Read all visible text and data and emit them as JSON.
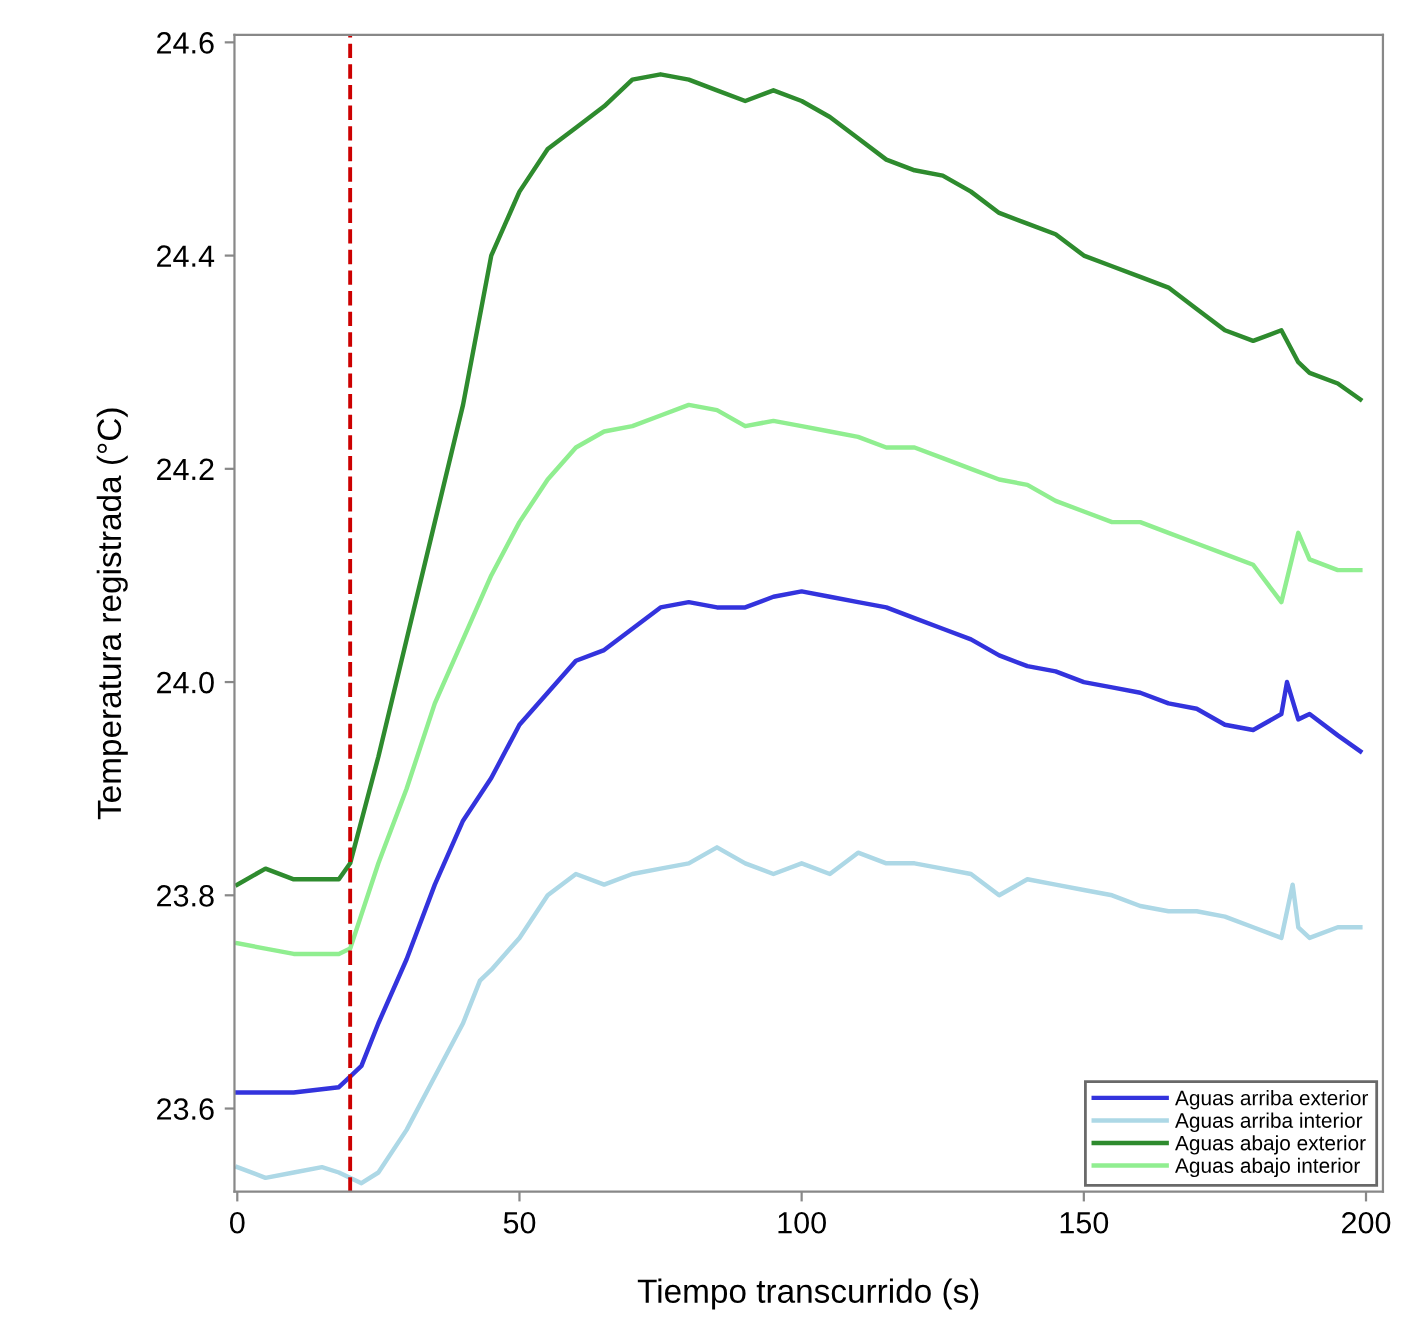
{
  "chart_data": {
    "type": "line",
    "xlabel": "Tiempo transcurrido (s)",
    "ylabel": "Temperatura registrada (°C)",
    "xlim": [
      -0.5,
      203
    ],
    "ylim": [
      23.522,
      24.607
    ],
    "xticks": [
      0,
      50,
      100,
      150,
      200
    ],
    "yticks": [
      23.6,
      23.8,
      {
        "value": 24.0,
        "label": "24.0"
      },
      24.2,
      24.4,
      24.6
    ],
    "grid": false,
    "legend": "bottom right",
    "line_style": "solid",
    "ref_lines": [
      {
        "axis": "x",
        "value": 20,
        "color": "#cc0000",
        "line_style": "dashed"
      }
    ],
    "series": [
      {
        "name": "Aguas arriba exterior",
        "color": "#3333dd",
        "x": [
          0,
          10,
          18,
          20,
          22,
          25,
          30,
          35,
          40,
          45,
          50,
          55,
          60,
          65,
          70,
          75,
          80,
          85,
          90,
          95,
          100,
          105,
          110,
          115,
          120,
          125,
          130,
          135,
          140,
          145,
          150,
          155,
          160,
          165,
          170,
          175,
          180,
          185,
          186,
          188,
          190,
          195,
          199
        ],
        "values": [
          23.615,
          23.615,
          23.62,
          23.63,
          23.64,
          23.68,
          23.74,
          23.81,
          23.87,
          23.91,
          23.96,
          23.99,
          24.02,
          24.03,
          24.05,
          24.07,
          24.075,
          24.07,
          24.07,
          24.08,
          24.085,
          24.08,
          24.075,
          24.07,
          24.06,
          24.05,
          24.04,
          24.025,
          24.015,
          24.01,
          24.0,
          23.995,
          23.99,
          23.98,
          23.975,
          23.96,
          23.955,
          23.97,
          24.0,
          23.965,
          23.97,
          23.95,
          23.935
        ]
      },
      {
        "name": "Aguas arriba interior",
        "color": "#add8e6",
        "x": [
          0,
          5,
          10,
          15,
          18,
          22,
          25,
          30,
          35,
          40,
          43,
          45,
          50,
          55,
          60,
          65,
          70,
          75,
          80,
          85,
          90,
          95,
          100,
          105,
          110,
          115,
          120,
          125,
          130,
          135,
          140,
          145,
          150,
          155,
          160,
          165,
          170,
          175,
          180,
          185,
          187,
          188,
          190,
          195,
          199
        ],
        "values": [
          23.545,
          23.535,
          23.54,
          23.545,
          23.54,
          23.53,
          23.54,
          23.58,
          23.63,
          23.68,
          23.72,
          23.73,
          23.76,
          23.8,
          23.82,
          23.81,
          23.82,
          23.825,
          23.83,
          23.845,
          23.83,
          23.82,
          23.83,
          23.82,
          23.84,
          23.83,
          23.83,
          23.825,
          23.82,
          23.8,
          23.815,
          23.81,
          23.805,
          23.8,
          23.79,
          23.785,
          23.785,
          23.78,
          23.77,
          23.76,
          23.81,
          23.77,
          23.76,
          23.77,
          23.77
        ]
      },
      {
        "name": "Aguas abajo exterior",
        "color": "#2e8b2e",
        "x": [
          0,
          5,
          10,
          18,
          20,
          25,
          30,
          35,
          40,
          45,
          50,
          55,
          60,
          65,
          70,
          75,
          80,
          85,
          90,
          95,
          100,
          105,
          110,
          115,
          120,
          125,
          130,
          135,
          140,
          145,
          150,
          155,
          160,
          165,
          170,
          175,
          180,
          185,
          188,
          190,
          195,
          199
        ],
        "values": [
          23.81,
          23.825,
          23.815,
          23.815,
          23.83,
          23.93,
          24.04,
          24.15,
          24.26,
          24.4,
          24.46,
          24.5,
          24.52,
          24.54,
          24.565,
          24.57,
          24.565,
          24.555,
          24.545,
          24.555,
          24.545,
          24.53,
          24.51,
          24.49,
          24.48,
          24.475,
          24.46,
          24.44,
          24.43,
          24.42,
          24.4,
          24.39,
          24.38,
          24.37,
          24.35,
          24.33,
          24.32,
          24.33,
          24.3,
          24.29,
          24.28,
          24.265
        ]
      },
      {
        "name": "Aguas abajo interior",
        "color": "#90ee90",
        "x": [
          0,
          5,
          10,
          18,
          20,
          25,
          30,
          35,
          40,
          45,
          50,
          55,
          60,
          65,
          70,
          75,
          80,
          85,
          90,
          95,
          100,
          105,
          110,
          115,
          120,
          125,
          130,
          135,
          140,
          145,
          150,
          155,
          160,
          165,
          170,
          175,
          180,
          185,
          188,
          190,
          195,
          199
        ],
        "values": [
          23.755,
          23.75,
          23.745,
          23.745,
          23.75,
          23.83,
          23.9,
          23.98,
          24.04,
          24.1,
          24.15,
          24.19,
          24.22,
          24.235,
          24.24,
          24.25,
          24.26,
          24.255,
          24.24,
          24.245,
          24.24,
          24.235,
          24.23,
          24.22,
          24.22,
          24.21,
          24.2,
          24.19,
          24.185,
          24.17,
          24.16,
          24.15,
          24.15,
          24.14,
          24.13,
          24.12,
          24.11,
          24.075,
          24.14,
          24.115,
          24.105,
          24.105
        ]
      }
    ]
  }
}
